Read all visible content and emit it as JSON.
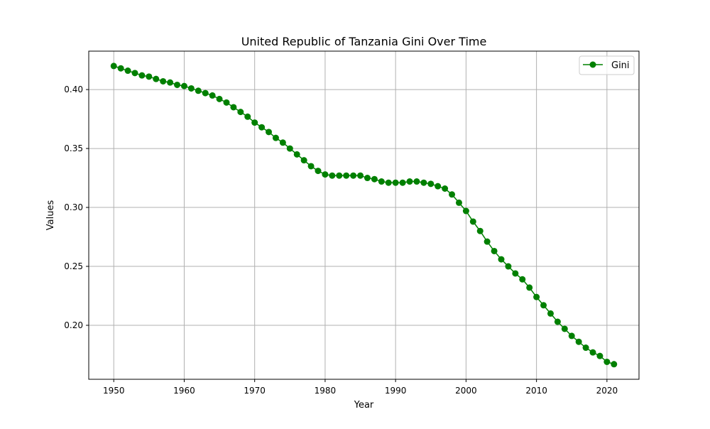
{
  "chart_data": {
    "type": "line",
    "title": "United Republic of Tanzania Gini Over Time",
    "xlabel": "Year",
    "ylabel": "Values",
    "xlim": [
      1946.45,
      2024.55
    ],
    "ylim": [
      0.1542,
      0.4326
    ],
    "xticks": [
      1950,
      1960,
      1970,
      1980,
      1990,
      2000,
      2010,
      2020
    ],
    "yticks": [
      0.2,
      0.25,
      0.3,
      0.35,
      0.4
    ],
    "grid": true,
    "legend_position": "top-right",
    "series": [
      {
        "name": "Gini",
        "color": "#008000",
        "marker": "circle",
        "x": [
          1950,
          1951,
          1952,
          1953,
          1954,
          1955,
          1956,
          1957,
          1958,
          1959,
          1960,
          1961,
          1962,
          1963,
          1964,
          1965,
          1966,
          1967,
          1968,
          1969,
          1970,
          1971,
          1972,
          1973,
          1974,
          1975,
          1976,
          1977,
          1978,
          1979,
          1980,
          1981,
          1982,
          1983,
          1984,
          1985,
          1986,
          1987,
          1988,
          1989,
          1990,
          1991,
          1992,
          1993,
          1994,
          1995,
          1996,
          1997,
          1998,
          1999,
          2000,
          2001,
          2002,
          2003,
          2004,
          2005,
          2006,
          2007,
          2008,
          2009,
          2010,
          2011,
          2012,
          2013,
          2014,
          2015,
          2016,
          2017,
          2018,
          2019,
          2020,
          2021
        ],
        "y": [
          0.42,
          0.418,
          0.416,
          0.414,
          0.412,
          0.411,
          0.409,
          0.407,
          0.406,
          0.404,
          0.403,
          0.401,
          0.399,
          0.397,
          0.395,
          0.392,
          0.389,
          0.385,
          0.381,
          0.377,
          0.372,
          0.368,
          0.364,
          0.359,
          0.355,
          0.35,
          0.345,
          0.34,
          0.335,
          0.331,
          0.328,
          0.327,
          0.327,
          0.327,
          0.327,
          0.327,
          0.325,
          0.324,
          0.322,
          0.321,
          0.321,
          0.321,
          0.322,
          0.322,
          0.321,
          0.32,
          0.318,
          0.316,
          0.311,
          0.304,
          0.297,
          0.288,
          0.28,
          0.271,
          0.263,
          0.256,
          0.25,
          0.244,
          0.239,
          0.232,
          0.224,
          0.217,
          0.21,
          0.203,
          0.197,
          0.191,
          0.186,
          0.181,
          0.177,
          0.174,
          0.169,
          0.167
        ]
      }
    ]
  }
}
